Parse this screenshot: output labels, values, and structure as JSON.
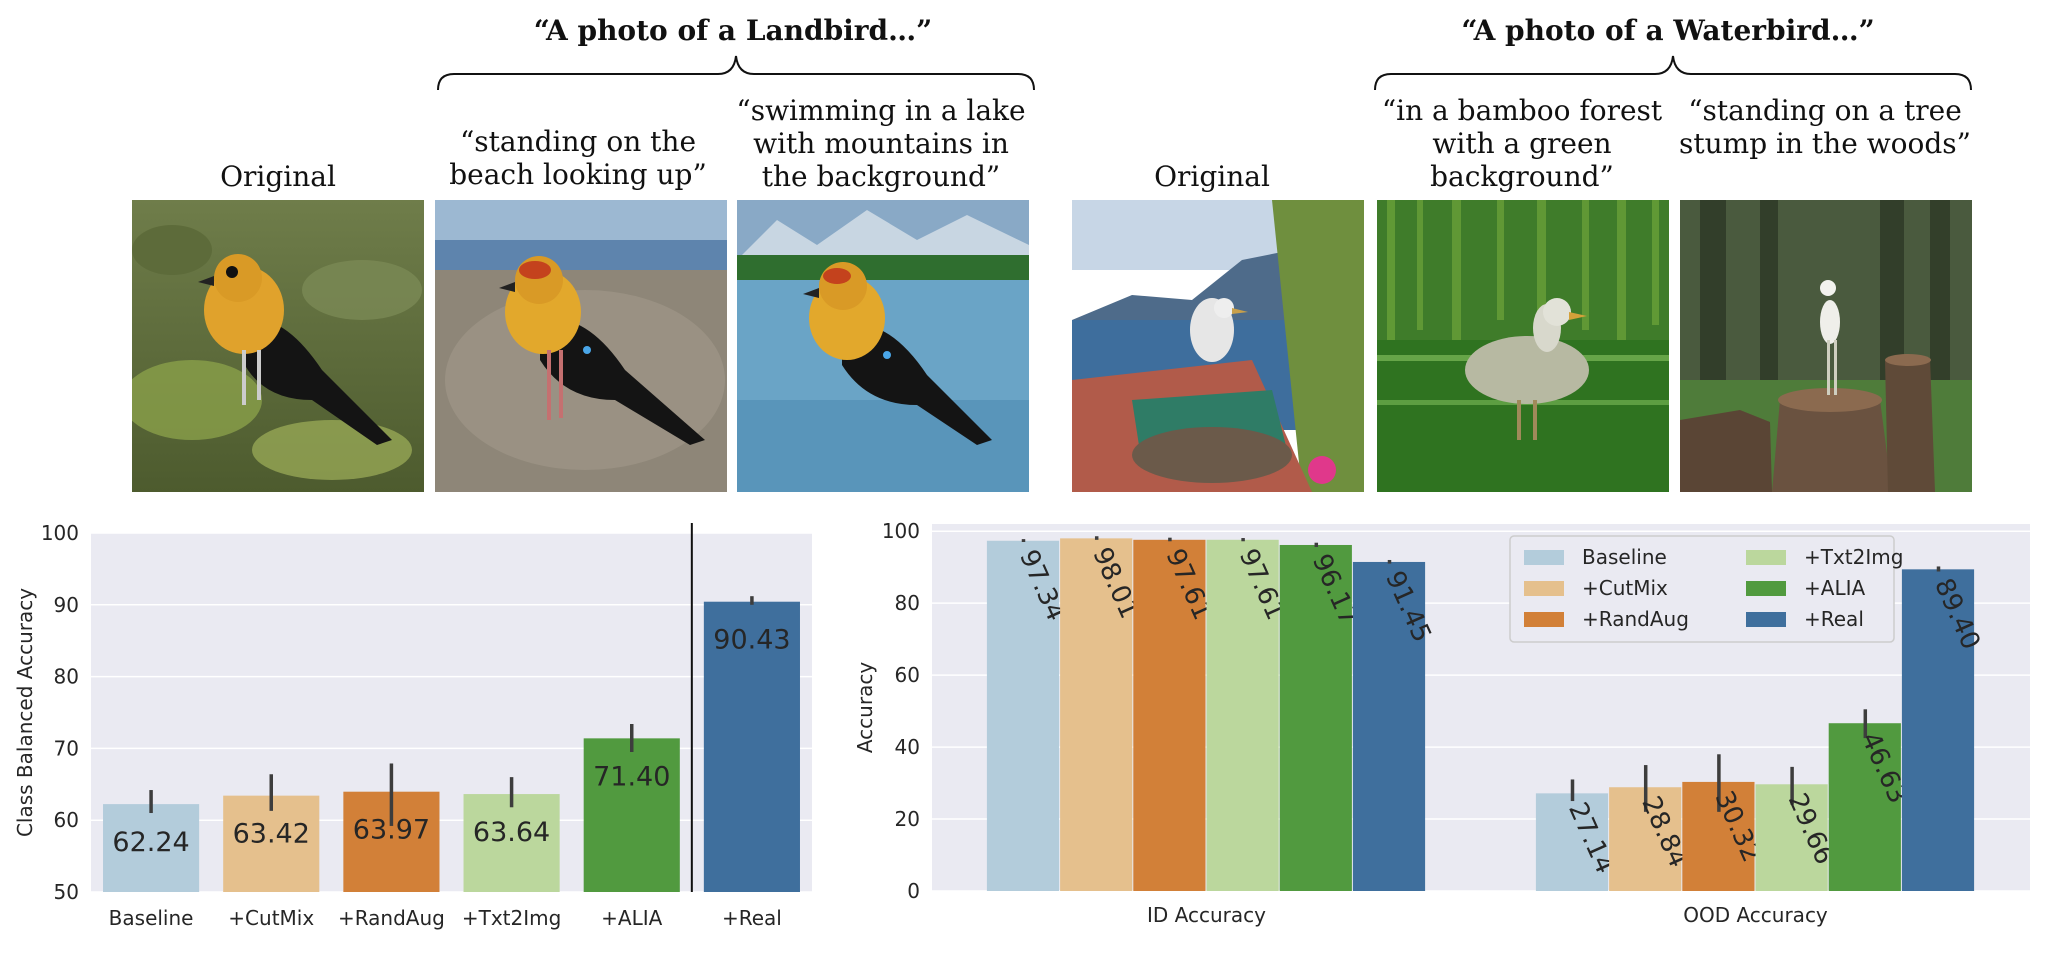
{
  "figure": {
    "landbird": {
      "title": "“A photo of a Landbird…”",
      "captions": [
        "Original",
        "“standing on the beach looking up”",
        "“swimming in a lake with mountains in the background”"
      ]
    },
    "waterbird": {
      "title": "“A photo of a Waterbird…”",
      "captions": [
        "Original",
        "“in a bamboo forest with a green background”",
        "“standing on a tree stump in the woods”"
      ]
    }
  },
  "chart_data": [
    {
      "type": "bar",
      "title": "",
      "xlabel": "",
      "ylabel": "Class Balanced Accuracy",
      "ylim": [
        50,
        100
      ],
      "yticks": [
        50,
        60,
        70,
        80,
        90,
        100
      ],
      "grid": true,
      "categories": [
        "Baseline",
        "+CutMix",
        "+RandAug",
        "+Txt2Img",
        "+ALIA",
        "+Real"
      ],
      "values": [
        62.24,
        63.42,
        63.97,
        63.64,
        71.4,
        90.43
      ],
      "value_labels": [
        "62.24",
        "63.42",
        "63.97",
        "63.64",
        "71.40",
        "90.43"
      ],
      "error": [
        [
          61.0,
          64.2
        ],
        [
          61.3,
          66.4
        ],
        [
          59.2,
          67.9
        ],
        [
          61.8,
          66.0
        ],
        [
          69.5,
          73.4
        ],
        [
          90.0,
          91.2
        ]
      ],
      "colors": [
        "#b3ccdb",
        "#e5c08d",
        "#d28038",
        "#bbd79d",
        "#519a3f",
        "#3f6f9d"
      ],
      "separator_after_index": 4
    },
    {
      "type": "bar",
      "title": "",
      "xlabel": "",
      "ylabel": "Accuracy",
      "ylim": [
        0,
        102
      ],
      "yticks": [
        0,
        20,
        40,
        60,
        80,
        100
      ],
      "grid": true,
      "legend_position": "top-right",
      "categories": [
        "ID Accuracy",
        "OOD Accuracy"
      ],
      "series": [
        {
          "name": "Baseline",
          "values": [
            97.34,
            27.14
          ],
          "labels": [
            "97.34",
            "27.14"
          ],
          "color": "#b3ccdb",
          "error": [
            [
              97.0,
              97.8
            ],
            [
              25.0,
              31.0
            ]
          ]
        },
        {
          "name": "+CutMix",
          "values": [
            98.01,
            28.84
          ],
          "labels": [
            "98.01",
            "28.84"
          ],
          "color": "#e5c08d",
          "error": [
            [
              97.6,
              98.6
            ],
            [
              22.0,
              35.0
            ]
          ]
        },
        {
          "name": "+RandAug",
          "values": [
            97.61,
            30.32
          ],
          "labels": [
            "97.61",
            "30.32"
          ],
          "color": "#d28038",
          "error": [
            [
              97.2,
              98.2
            ],
            [
              22.0,
              38.0
            ]
          ]
        },
        {
          "name": "+Txt2Img",
          "values": [
            97.61,
            29.66
          ],
          "labels": [
            "97.61",
            "29.66"
          ],
          "color": "#bbd79d",
          "error": [
            [
              97.2,
              98.1
            ],
            [
              24.0,
              34.5
            ]
          ]
        },
        {
          "name": "+ALIA",
          "values": [
            96.17,
            46.63
          ],
          "labels": [
            "96.17",
            "46.63"
          ],
          "color": "#519a3f",
          "error": [
            [
              95.6,
              96.8
            ],
            [
              42.5,
              50.5
            ]
          ]
        },
        {
          "name": "+Real",
          "values": [
            91.45,
            89.4
          ],
          "labels": [
            "91.45",
            "89.40"
          ],
          "color": "#3f6f9d",
          "error": [
            [
              91.0,
              92.0
            ],
            [
              88.8,
              90.2
            ]
          ]
        }
      ]
    }
  ]
}
